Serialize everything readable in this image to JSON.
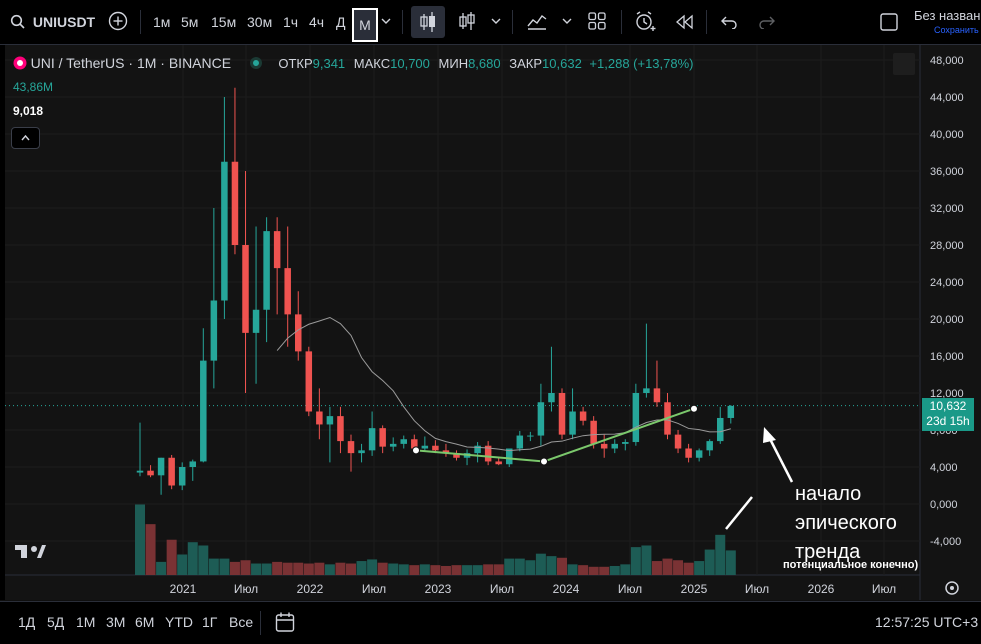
{
  "toolbar": {
    "symbol": "UNIUSDT",
    "intervals": [
      "1м",
      "5м",
      "15м",
      "30м",
      "1ч",
      "4ч",
      "Д",
      "М"
    ],
    "selected_interval": "М",
    "layout_label": "Без назван",
    "save_label": "Сохранить"
  },
  "legend": {
    "title": "UNI / TetherUS · 1M · BINANCE",
    "open_label": "ОТКР",
    "open": "9,341",
    "high_label": "МАКС",
    "high": "10,700",
    "low_label": "МИН",
    "low": "8,680",
    "close_label": "ЗАКР",
    "close": "10,632",
    "change": "+1,288 (+13,78%)",
    "volume": "43,86M",
    "ma": "9,018",
    "collapse_icon": "chevron-up-icon"
  },
  "price_tag": {
    "price": "10,632",
    "countdown": "23d 15h"
  },
  "annotations": {
    "line1": "начало",
    "line2": "эпического",
    "line3": "тренда",
    "note": "потенциальное конечно)"
  },
  "x_axis": [
    "2021",
    "Июл",
    "2022",
    "Июл",
    "2023",
    "Июл",
    "2024",
    "Июл",
    "2025",
    "Июл",
    "2026",
    "Июл"
  ],
  "bottom": {
    "ranges": [
      "1Д",
      "5Д",
      "1М",
      "3М",
      "6М",
      "YTD",
      "1Г",
      "Все"
    ],
    "time": "12:57:25 UTC+3"
  },
  "chart_data": {
    "type": "candlestick",
    "y_ticks": [
      "48,000",
      "44,000",
      "40,000",
      "36,000",
      "32,000",
      "28,000",
      "24,000",
      "20,000",
      "16,000",
      "12,000",
      "8,000",
      "4,000",
      "0,000",
      "-4,000"
    ],
    "ylim": [
      -7.5,
      49.5
    ],
    "up_color": "#26a69a",
    "down_color": "#ef5350",
    "candles": [
      {
        "o": 3.4,
        "h": 8.8,
        "l": 3.0,
        "c": 3.6
      },
      {
        "o": 3.6,
        "h": 4.2,
        "l": 2.9,
        "c": 3.1
      },
      {
        "o": 3.1,
        "h": 5.0,
        "l": 1.0,
        "c": 5.0
      },
      {
        "o": 5.0,
        "h": 5.3,
        "l": 1.6,
        "c": 2.0
      },
      {
        "o": 2.0,
        "h": 4.5,
        "l": 1.5,
        "c": 4.0
      },
      {
        "o": 4.0,
        "h": 4.8,
        "l": 2.5,
        "c": 4.6
      },
      {
        "o": 4.6,
        "h": 19.0,
        "l": 4.5,
        "c": 15.5
      },
      {
        "o": 15.5,
        "h": 32.0,
        "l": 12.5,
        "c": 22.0
      },
      {
        "o": 22.0,
        "h": 44.0,
        "l": 20.0,
        "c": 37.0
      },
      {
        "o": 37.0,
        "h": 45.0,
        "l": 27.0,
        "c": 28.0
      },
      {
        "o": 28.0,
        "h": 36.0,
        "l": 12.0,
        "c": 18.5
      },
      {
        "o": 18.5,
        "h": 30.0,
        "l": 13.0,
        "c": 21.0
      },
      {
        "o": 21.0,
        "h": 31.0,
        "l": 17.5,
        "c": 29.5
      },
      {
        "o": 29.5,
        "h": 31.0,
        "l": 20.5,
        "c": 25.5
      },
      {
        "o": 25.5,
        "h": 30.0,
        "l": 17.0,
        "c": 20.5
      },
      {
        "o": 20.5,
        "h": 23.0,
        "l": 15.5,
        "c": 16.5
      },
      {
        "o": 16.5,
        "h": 17.0,
        "l": 9.5,
        "c": 10.0
      },
      {
        "o": 10.0,
        "h": 12.5,
        "l": 7.0,
        "c": 8.6
      },
      {
        "o": 8.6,
        "h": 10.5,
        "l": 4.5,
        "c": 9.5
      },
      {
        "o": 9.5,
        "h": 10.5,
        "l": 5.5,
        "c": 6.8
      },
      {
        "o": 6.8,
        "h": 7.5,
        "l": 3.5,
        "c": 5.5
      },
      {
        "o": 5.5,
        "h": 6.5,
        "l": 4.5,
        "c": 5.8
      },
      {
        "o": 5.8,
        "h": 10.0,
        "l": 5.2,
        "c": 8.2
      },
      {
        "o": 8.2,
        "h": 8.5,
        "l": 5.5,
        "c": 6.2
      },
      {
        "o": 6.2,
        "h": 7.2,
        "l": 5.7,
        "c": 6.5
      },
      {
        "o": 6.5,
        "h": 7.4,
        "l": 6.0,
        "c": 7.0
      },
      {
        "o": 7.0,
        "h": 7.5,
        "l": 5.5,
        "c": 6.0
      },
      {
        "o": 6.0,
        "h": 7.3,
        "l": 5.7,
        "c": 6.3
      },
      {
        "o": 6.3,
        "h": 6.9,
        "l": 5.5,
        "c": 5.8
      },
      {
        "o": 5.8,
        "h": 6.5,
        "l": 5.1,
        "c": 5.5
      },
      {
        "o": 5.5,
        "h": 5.8,
        "l": 4.7,
        "c": 5.0
      },
      {
        "o": 5.0,
        "h": 5.9,
        "l": 4.2,
        "c": 5.5
      },
      {
        "o": 5.5,
        "h": 6.7,
        "l": 4.5,
        "c": 6.3
      },
      {
        "o": 6.3,
        "h": 6.8,
        "l": 4.2,
        "c": 4.6
      },
      {
        "o": 4.6,
        "h": 5.0,
        "l": 4.2,
        "c": 4.3
      },
      {
        "o": 4.3,
        "h": 6.0,
        "l": 4.0,
        "c": 6.0
      },
      {
        "o": 6.0,
        "h": 7.9,
        "l": 5.7,
        "c": 7.4
      },
      {
        "o": 7.4,
        "h": 7.8,
        "l": 6.8,
        "c": 7.4
      },
      {
        "o": 7.4,
        "h": 13.0,
        "l": 6.3,
        "c": 11.0
      },
      {
        "o": 11.0,
        "h": 17.0,
        "l": 10.0,
        "c": 12.0
      },
      {
        "o": 12.0,
        "h": 12.5,
        "l": 7.0,
        "c": 7.5
      },
      {
        "o": 7.5,
        "h": 12.5,
        "l": 7.0,
        "c": 10.0
      },
      {
        "o": 10.0,
        "h": 10.5,
        "l": 8.5,
        "c": 9.0
      },
      {
        "o": 9.0,
        "h": 9.5,
        "l": 6.0,
        "c": 6.5
      },
      {
        "o": 6.5,
        "h": 7.5,
        "l": 5.0,
        "c": 6.0
      },
      {
        "o": 6.0,
        "h": 7.0,
        "l": 5.5,
        "c": 6.5
      },
      {
        "o": 6.5,
        "h": 7.0,
        "l": 5.8,
        "c": 6.7
      },
      {
        "o": 6.7,
        "h": 13.0,
        "l": 6.3,
        "c": 12.0
      },
      {
        "o": 12.0,
        "h": 19.5,
        "l": 11.5,
        "c": 12.5
      },
      {
        "o": 12.5,
        "h": 15.5,
        "l": 10.5,
        "c": 11.0
      },
      {
        "o": 11.0,
        "h": 12.0,
        "l": 7.0,
        "c": 7.5
      },
      {
        "o": 7.5,
        "h": 8.0,
        "l": 5.5,
        "c": 6.0
      },
      {
        "o": 6.0,
        "h": 6.5,
        "l": 4.5,
        "c": 5.0
      },
      {
        "o": 5.0,
        "h": 6.0,
        "l": 4.6,
        "c": 5.8
      },
      {
        "o": 5.8,
        "h": 7.0,
        "l": 5.2,
        "c": 6.8
      },
      {
        "o": 6.8,
        "h": 10.5,
        "l": 6.5,
        "c": 9.3
      },
      {
        "o": 9.3,
        "h": 10.7,
        "l": 8.7,
        "c": 10.6
      }
    ],
    "volumes": [
      8.6,
      6.2,
      1.6,
      4.3,
      2.5,
      4.0,
      3.6,
      2.0,
      2.0,
      1.6,
      1.8,
      1.4,
      1.4,
      1.6,
      1.5,
      1.5,
      1.4,
      1.5,
      1.3,
      1.5,
      1.4,
      1.7,
      1.9,
      1.5,
      1.4,
      1.3,
      1.2,
      1.3,
      1.2,
      1.1,
      1.2,
      1.2,
      1.2,
      1.3,
      1.3,
      2.0,
      2.0,
      1.8,
      2.6,
      2.3,
      2.1,
      1.3,
      1.2,
      1.0,
      1.0,
      1.1,
      1.3,
      3.4,
      3.6,
      1.7,
      2.0,
      1.8,
      1.5,
      1.7,
      3.1,
      4.9,
      3.0
    ]
  }
}
